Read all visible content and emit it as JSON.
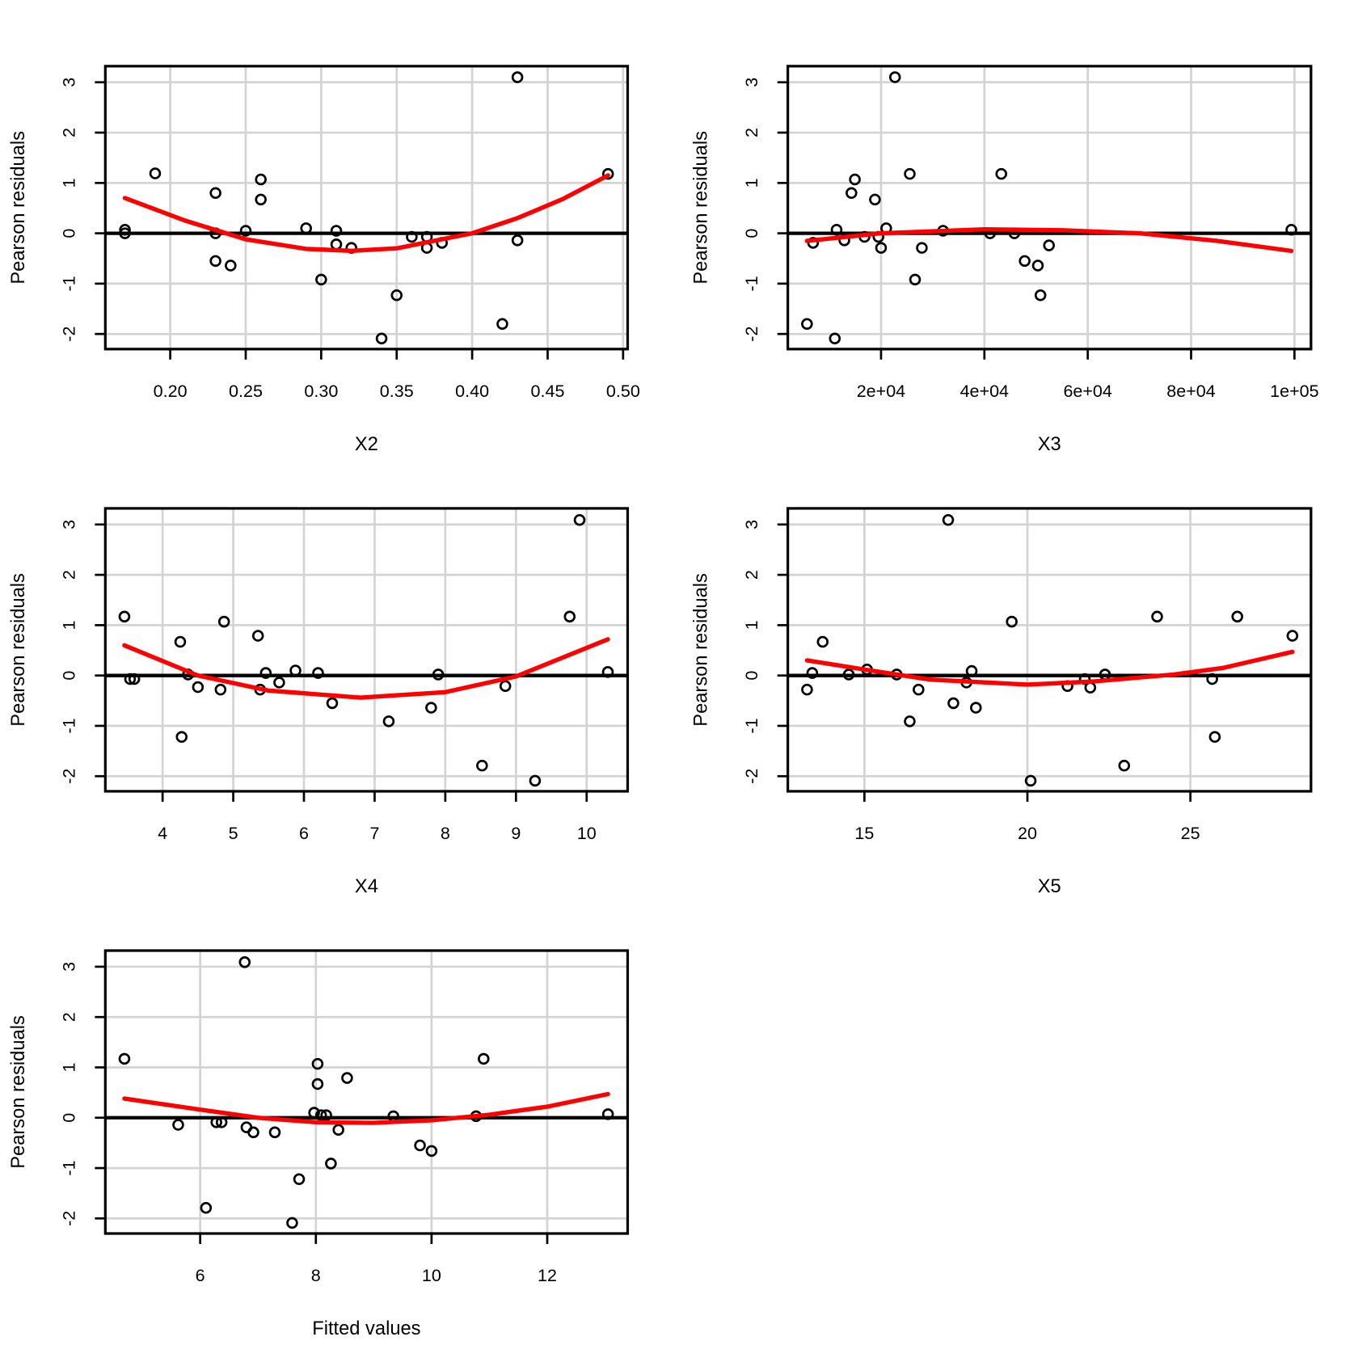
{
  "chart_data": [
    {
      "type": "scatter",
      "xlabel": "X2",
      "ylabel": "Pearson residuals",
      "xlim": [
        0.157,
        0.503
      ],
      "ylim": [
        -2.3,
        3.32
      ],
      "xticks": [
        "0.20",
        "0.25",
        "0.30",
        "0.35",
        "0.40",
        "0.45",
        "0.50"
      ],
      "xtick_values": [
        0.2,
        0.25,
        0.3,
        0.35,
        0.4,
        0.45,
        0.5
      ],
      "yticks": [
        "-2",
        "-1",
        "0",
        "1",
        "2",
        "3"
      ],
      "grid": true,
      "points": [
        [
          0.17,
          0.07
        ],
        [
          0.17,
          0.0
        ],
        [
          0.19,
          1.19
        ],
        [
          0.23,
          0.8
        ],
        [
          0.23,
          0.0
        ],
        [
          0.23,
          -0.55
        ],
        [
          0.24,
          -0.64
        ],
        [
          0.25,
          0.05
        ],
        [
          0.26,
          1.07
        ],
        [
          0.26,
          0.67
        ],
        [
          0.29,
          0.1
        ],
        [
          0.3,
          -0.92
        ],
        [
          0.31,
          0.05
        ],
        [
          0.31,
          -0.22
        ],
        [
          0.32,
          -0.29
        ],
        [
          0.34,
          -2.09
        ],
        [
          0.35,
          -1.23
        ],
        [
          0.36,
          -0.07
        ],
        [
          0.37,
          -0.07
        ],
        [
          0.37,
          -0.29
        ],
        [
          0.38,
          -0.19
        ],
        [
          0.42,
          -1.8
        ],
        [
          0.43,
          3.1
        ],
        [
          0.43,
          -0.14
        ],
        [
          0.49,
          1.18
        ]
      ],
      "smooth": [
        [
          0.17,
          0.7
        ],
        [
          0.21,
          0.25
        ],
        [
          0.25,
          -0.12
        ],
        [
          0.29,
          -0.31
        ],
        [
          0.32,
          -0.35
        ],
        [
          0.35,
          -0.3
        ],
        [
          0.38,
          -0.12
        ],
        [
          0.4,
          0.0
        ],
        [
          0.43,
          0.3
        ],
        [
          0.46,
          0.68
        ],
        [
          0.49,
          1.15
        ]
      ]
    },
    {
      "type": "scatter",
      "xlabel": "X3",
      "ylabel": "Pearson residuals",
      "xlim": [
        1960,
        103200
      ],
      "ylim": [
        -2.3,
        3.32
      ],
      "xticks": [
        "2e+04",
        "4e+04",
        "6e+04",
        "8e+04",
        "1e+05"
      ],
      "xtick_values": [
        20000,
        40000,
        60000,
        80000,
        100000
      ],
      "yticks": [
        "-2",
        "-1",
        "0",
        "1",
        "2",
        "3"
      ],
      "grid": true,
      "points": [
        [
          5670,
          -1.8
        ],
        [
          6850,
          -0.19
        ],
        [
          11060,
          -2.09
        ],
        [
          11400,
          0.07
        ],
        [
          12900,
          -0.14
        ],
        [
          14270,
          0.8
        ],
        [
          14940,
          1.07
        ],
        [
          16800,
          -0.07
        ],
        [
          18820,
          0.67
        ],
        [
          19500,
          -0.07
        ],
        [
          20000,
          -0.29
        ],
        [
          21000,
          0.1
        ],
        [
          22700,
          3.1
        ],
        [
          25560,
          1.18
        ],
        [
          26580,
          -0.92
        ],
        [
          27900,
          -0.29
        ],
        [
          32000,
          0.05
        ],
        [
          41100,
          0.0
        ],
        [
          43270,
          1.18
        ],
        [
          45800,
          0.0
        ],
        [
          47800,
          -0.55
        ],
        [
          50350,
          -0.64
        ],
        [
          50850,
          -1.23
        ],
        [
          52500,
          -0.24
        ],
        [
          99400,
          0.07
        ]
      ],
      "smooth": [
        [
          5670,
          -0.15
        ],
        [
          20000,
          0.0
        ],
        [
          40000,
          0.08
        ],
        [
          55000,
          0.06
        ],
        [
          70000,
          0.0
        ],
        [
          85000,
          -0.15
        ],
        [
          99400,
          -0.35
        ]
      ]
    },
    {
      "type": "scatter",
      "xlabel": "X4",
      "ylabel": "Pearson residuals",
      "xlim": [
        3.19,
        10.58
      ],
      "ylim": [
        -2.3,
        3.32
      ],
      "xticks": [
        "4",
        "5",
        "6",
        "7",
        "8",
        "9",
        "10"
      ],
      "xtick_values": [
        4,
        5,
        6,
        7,
        8,
        9,
        10
      ],
      "yticks": [
        "-2",
        "-1",
        "0",
        "1",
        "2",
        "3"
      ],
      "grid": true,
      "points": [
        [
          3.46,
          1.17
        ],
        [
          3.54,
          -0.07
        ],
        [
          3.6,
          -0.07
        ],
        [
          4.25,
          0.67
        ],
        [
          4.27,
          -1.22
        ],
        [
          4.36,
          0.02
        ],
        [
          4.5,
          -0.23
        ],
        [
          4.82,
          -0.28
        ],
        [
          4.87,
          1.07
        ],
        [
          5.35,
          0.79
        ],
        [
          5.38,
          -0.28
        ],
        [
          5.46,
          0.05
        ],
        [
          5.65,
          -0.14
        ],
        [
          5.88,
          0.1
        ],
        [
          6.2,
          0.05
        ],
        [
          6.4,
          -0.55
        ],
        [
          7.2,
          -0.91
        ],
        [
          7.8,
          -0.64
        ],
        [
          7.9,
          0.02
        ],
        [
          8.52,
          -1.79
        ],
        [
          8.85,
          -0.21
        ],
        [
          9.27,
          -2.09
        ],
        [
          9.76,
          1.17
        ],
        [
          9.9,
          3.09
        ],
        [
          10.3,
          0.07
        ]
      ],
      "smooth": [
        [
          3.46,
          0.6
        ],
        [
          4.5,
          0.0
        ],
        [
          5.5,
          -0.3
        ],
        [
          6.8,
          -0.44
        ],
        [
          8,
          -0.33
        ],
        [
          9,
          -0.02
        ],
        [
          10.3,
          0.72
        ]
      ]
    },
    {
      "type": "scatter",
      "xlabel": "X5",
      "ylabel": "Pearson residuals",
      "xlim": [
        12.65,
        28.7
      ],
      "ylim": [
        -2.3,
        3.32
      ],
      "xticks": [
        "15",
        "20",
        "25"
      ],
      "xtick_values": [
        15,
        20,
        25
      ],
      "yticks": [
        "-2",
        "-1",
        "0",
        "1",
        "2",
        "3"
      ],
      "grid": true,
      "points": [
        [
          13.24,
          -0.28
        ],
        [
          13.4,
          0.05
        ],
        [
          13.72,
          0.67
        ],
        [
          14.52,
          0.02
        ],
        [
          15.08,
          0.12
        ],
        [
          15.99,
          0.02
        ],
        [
          16.39,
          -0.91
        ],
        [
          16.66,
          -0.28
        ],
        [
          17.57,
          3.09
        ],
        [
          17.73,
          -0.55
        ],
        [
          18.13,
          -0.14
        ],
        [
          18.29,
          0.09
        ],
        [
          18.42,
          -0.64
        ],
        [
          19.52,
          1.07
        ],
        [
          20.1,
          -2.09
        ],
        [
          21.23,
          -0.21
        ],
        [
          21.76,
          -0.07
        ],
        [
          21.93,
          -0.24
        ],
        [
          22.38,
          0.02
        ],
        [
          22.97,
          -1.79
        ],
        [
          23.98,
          1.17
        ],
        [
          25.67,
          -0.07
        ],
        [
          25.75,
          -1.22
        ],
        [
          26.44,
          1.17
        ],
        [
          28.13,
          0.79
        ]
      ],
      "smooth": [
        [
          13.24,
          0.3
        ],
        [
          15,
          0.12
        ],
        [
          17,
          -0.08
        ],
        [
          20,
          -0.18
        ],
        [
          22,
          -0.12
        ],
        [
          24.5,
          0.02
        ],
        [
          26,
          0.15
        ],
        [
          28.13,
          0.47
        ]
      ]
    },
    {
      "type": "scatter",
      "xlabel": "Fitted values",
      "ylabel": "Pearson residuals",
      "xlim": [
        4.36,
        13.39
      ],
      "ylim": [
        -2.3,
        3.32
      ],
      "xticks": [
        "6",
        "8",
        "10",
        "12"
      ],
      "xtick_values": [
        6,
        8,
        10,
        12
      ],
      "yticks": [
        "-2",
        "-1",
        "0",
        "1",
        "2",
        "3"
      ],
      "grid": true,
      "points": [
        [
          4.69,
          1.17
        ],
        [
          5.62,
          -0.14
        ],
        [
          6.1,
          -1.79
        ],
        [
          6.28,
          -0.09
        ],
        [
          6.37,
          -0.09
        ],
        [
          6.77,
          3.09
        ],
        [
          6.8,
          -0.19
        ],
        [
          6.92,
          -0.29
        ],
        [
          7.29,
          -0.29
        ],
        [
          7.59,
          -2.09
        ],
        [
          7.71,
          -1.22
        ],
        [
          7.97,
          0.1
        ],
        [
          8.03,
          1.07
        ],
        [
          8.03,
          0.67
        ],
        [
          8.09,
          0.05
        ],
        [
          8.18,
          0.05
        ],
        [
          8.26,
          -0.91
        ],
        [
          8.39,
          -0.24
        ],
        [
          8.54,
          0.79
        ],
        [
          9.34,
          0.03
        ],
        [
          9.8,
          -0.55
        ],
        [
          10.0,
          -0.66
        ],
        [
          10.77,
          0.03
        ],
        [
          10.9,
          1.17
        ],
        [
          13.05,
          0.07
        ]
      ],
      "smooth": [
        [
          4.69,
          0.38
        ],
        [
          6,
          0.16
        ],
        [
          7,
          0.0
        ],
        [
          8,
          -0.09
        ],
        [
          9,
          -0.1
        ],
        [
          10,
          -0.05
        ],
        [
          11,
          0.06
        ],
        [
          12,
          0.22
        ],
        [
          13.05,
          0.47
        ]
      ]
    }
  ],
  "colors": {
    "smooth": "#ff0000",
    "grid": "#d3d3d3",
    "points": "#000000",
    "reference_line": "#000000"
  }
}
